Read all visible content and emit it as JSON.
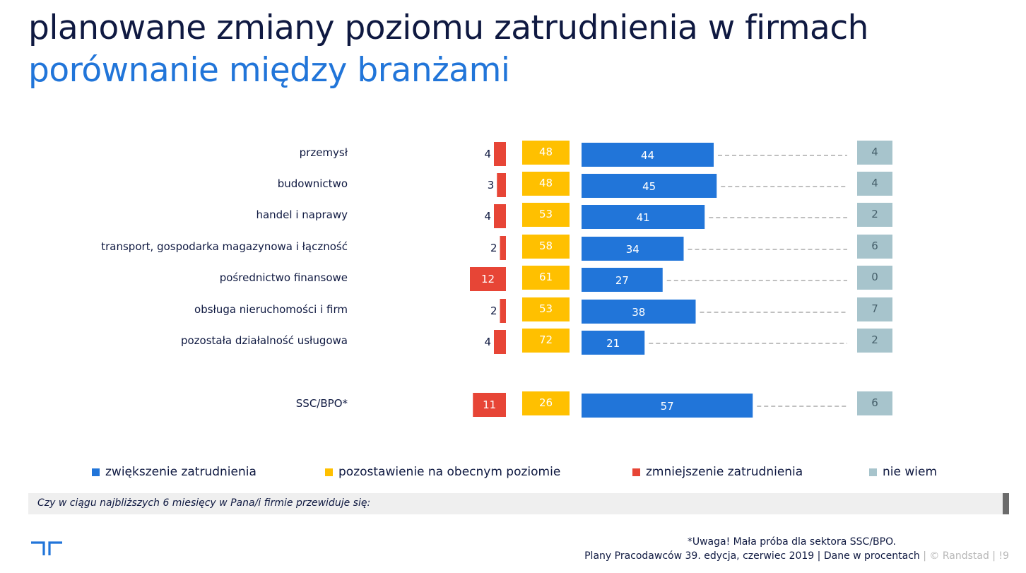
{
  "title": "planowane zmiany poziomu zatrudnienia w firmach",
  "subtitle": "porównanie między branżami",
  "question": "Czy w ciągu najbliższych 6 miesięcy w Pana/i firmie przewiduje się:",
  "note": "*Uwaga! Mała próba dla sektora SSC/BPO.",
  "footer": {
    "source": "Plany Pracodawców 39. edycja, czerwiec 2019",
    "units": "| Dane w procentach",
    "copyright": "| © Randstad |",
    "page": "!9"
  },
  "colors": {
    "increase": "#2175d9",
    "same": "#ffc000",
    "decrease": "#e74536",
    "dontknow": "#a7c4cc",
    "title": "#0f1941",
    "subtitle": "#2175d9"
  },
  "legend": [
    {
      "key": "increase",
      "label": "zwiększenie zatrudnienia"
    },
    {
      "key": "same",
      "label": "pozostawienie na obecnym poziomie"
    },
    {
      "key": "decrease",
      "label": "zmniejszenie zatrudnienia"
    },
    {
      "key": "dontknow",
      "label": "nie wiem"
    }
  ],
  "chart_data": {
    "type": "bar",
    "orientation": "horizontal",
    "unit": "%",
    "categories": [
      "przemysł",
      "budownictwo",
      "handel i naprawy",
      "transport, gospodarka magazynowa i łączność",
      "pośrednictwo finansowe",
      "obsługa nieruchomości i firm",
      "pozostała działalność usługowa",
      "SSC/BPO*"
    ],
    "series": [
      {
        "name": "zmniejszenie zatrudnienia",
        "key": "decrease",
        "values": [
          4,
          3,
          4,
          2,
          12,
          2,
          4,
          11
        ]
      },
      {
        "name": "pozostawienie na obecnym poziomie",
        "key": "same",
        "values": [
          48,
          48,
          53,
          58,
          61,
          53,
          72,
          26
        ]
      },
      {
        "name": "zwiększenie zatrudnienia",
        "key": "increase",
        "values": [
          44,
          45,
          41,
          34,
          27,
          38,
          21,
          57
        ]
      },
      {
        "name": "nie wiem",
        "key": "dontknow",
        "values": [
          4,
          4,
          2,
          6,
          0,
          7,
          2,
          6
        ]
      }
    ],
    "legend_position": "bottom",
    "grid": false
  }
}
